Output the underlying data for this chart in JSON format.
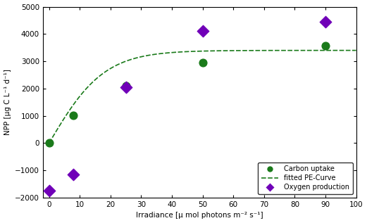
{
  "carbon_x": [
    0,
    8,
    25,
    50,
    90
  ],
  "carbon_y": [
    0,
    1020,
    2100,
    2950,
    3580
  ],
  "oxygen_x": [
    0,
    8,
    25,
    50,
    90
  ],
  "oxygen_y": [
    -1750,
    -1150,
    2050,
    4100,
    4450
  ],
  "carbon_color": "#1a7a1a",
  "oxygen_color": "#7000b8",
  "curve_color": "#1a7a1a",
  "xlim": [
    -2,
    100
  ],
  "ylim": [
    -2000,
    5000
  ],
  "xticks": [
    0,
    10,
    20,
    30,
    40,
    50,
    60,
    70,
    80,
    90,
    100
  ],
  "yticks": [
    -2000,
    -1000,
    0,
    1000,
    2000,
    3000,
    4000,
    5000
  ],
  "xlabel": "Irradiance [μ mol photons m⁻² s⁻¹]",
  "ylabel": "NPP [μg C L⁻¹ d⁻¹]",
  "legend_carbon": "Carbon uptake",
  "legend_curve": "fitted PE-Curve",
  "legend_oxygen": "Oxygen production",
  "pe_Pmax": 3400,
  "pe_Ek": 18.0,
  "background_color": "#ffffff"
}
